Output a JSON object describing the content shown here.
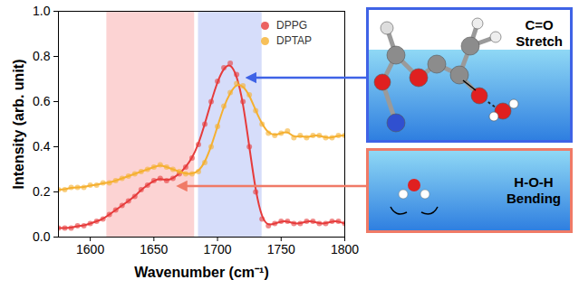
{
  "chart_data": {
    "type": "line",
    "x": [
      1575,
      1580,
      1585,
      1590,
      1595,
      1600,
      1605,
      1610,
      1615,
      1620,
      1625,
      1630,
      1635,
      1640,
      1645,
      1650,
      1655,
      1660,
      1665,
      1670,
      1675,
      1680,
      1685,
      1690,
      1695,
      1700,
      1705,
      1710,
      1715,
      1720,
      1725,
      1730,
      1735,
      1740,
      1745,
      1750,
      1755,
      1760,
      1765,
      1770,
      1775,
      1780,
      1785,
      1790,
      1795,
      1800
    ],
    "series": [
      {
        "name": "DPPG",
        "color": "#e63b3b",
        "marker": "circle",
        "line_style": "solid",
        "values": [
          0.04,
          0.04,
          0.04,
          0.05,
          0.05,
          0.06,
          0.07,
          0.08,
          0.1,
          0.12,
          0.14,
          0.16,
          0.18,
          0.21,
          0.23,
          0.25,
          0.26,
          0.25,
          0.26,
          0.28,
          0.31,
          0.35,
          0.41,
          0.5,
          0.6,
          0.69,
          0.75,
          0.77,
          0.72,
          0.6,
          0.4,
          0.2,
          0.08,
          0.05,
          0.06,
          0.07,
          0.07,
          0.06,
          0.06,
          0.07,
          0.07,
          0.06,
          0.06,
          0.07,
          0.07,
          0.06
        ]
      },
      {
        "name": "DPTAP",
        "color": "#f5b030",
        "marker": "circle",
        "line_style": "solid",
        "values": [
          0.21,
          0.21,
          0.22,
          0.22,
          0.22,
          0.23,
          0.23,
          0.24,
          0.24,
          0.25,
          0.26,
          0.27,
          0.28,
          0.29,
          0.3,
          0.31,
          0.32,
          0.31,
          0.3,
          0.29,
          0.28,
          0.28,
          0.29,
          0.33,
          0.4,
          0.49,
          0.58,
          0.64,
          0.68,
          0.67,
          0.63,
          0.56,
          0.5,
          0.46,
          0.45,
          0.46,
          0.47,
          0.44,
          0.45,
          0.44,
          0.45,
          0.45,
          0.44,
          0.44,
          0.45,
          0.45
        ]
      }
    ],
    "x_label": "Wavenumber (cm⁻¹)",
    "y_label": "Intensity (arb. unit)",
    "xlim": [
      1575,
      1800
    ],
    "xticks": [
      1600,
      1650,
      1700,
      1750,
      1800
    ],
    "ylim": [
      0,
      1.0
    ],
    "yticks": [
      {
        "value": 0,
        "label": "0.0"
      },
      {
        "value": 0.2,
        "label": "0.2"
      },
      {
        "value": 0.4,
        "label": "0.4"
      },
      {
        "value": 0.6,
        "label": "0.6"
      },
      {
        "value": 0.8,
        "label": "0.8"
      },
      {
        "value": 1.0,
        "label": "1.0"
      }
    ],
    "grid": false,
    "legend": "upper right",
    "regions": [
      {
        "x": [
          1613,
          1682
        ],
        "color": "#fcd3d3"
      },
      {
        "x": [
          1685,
          1735
        ],
        "color": "#d6ddfa"
      }
    ],
    "annotations": [
      {
        "text": "C=O Stretch",
        "color": "#3f63e6"
      },
      {
        "text": "H-O-H Bending",
        "color": "#f07a66"
      }
    ]
  }
}
